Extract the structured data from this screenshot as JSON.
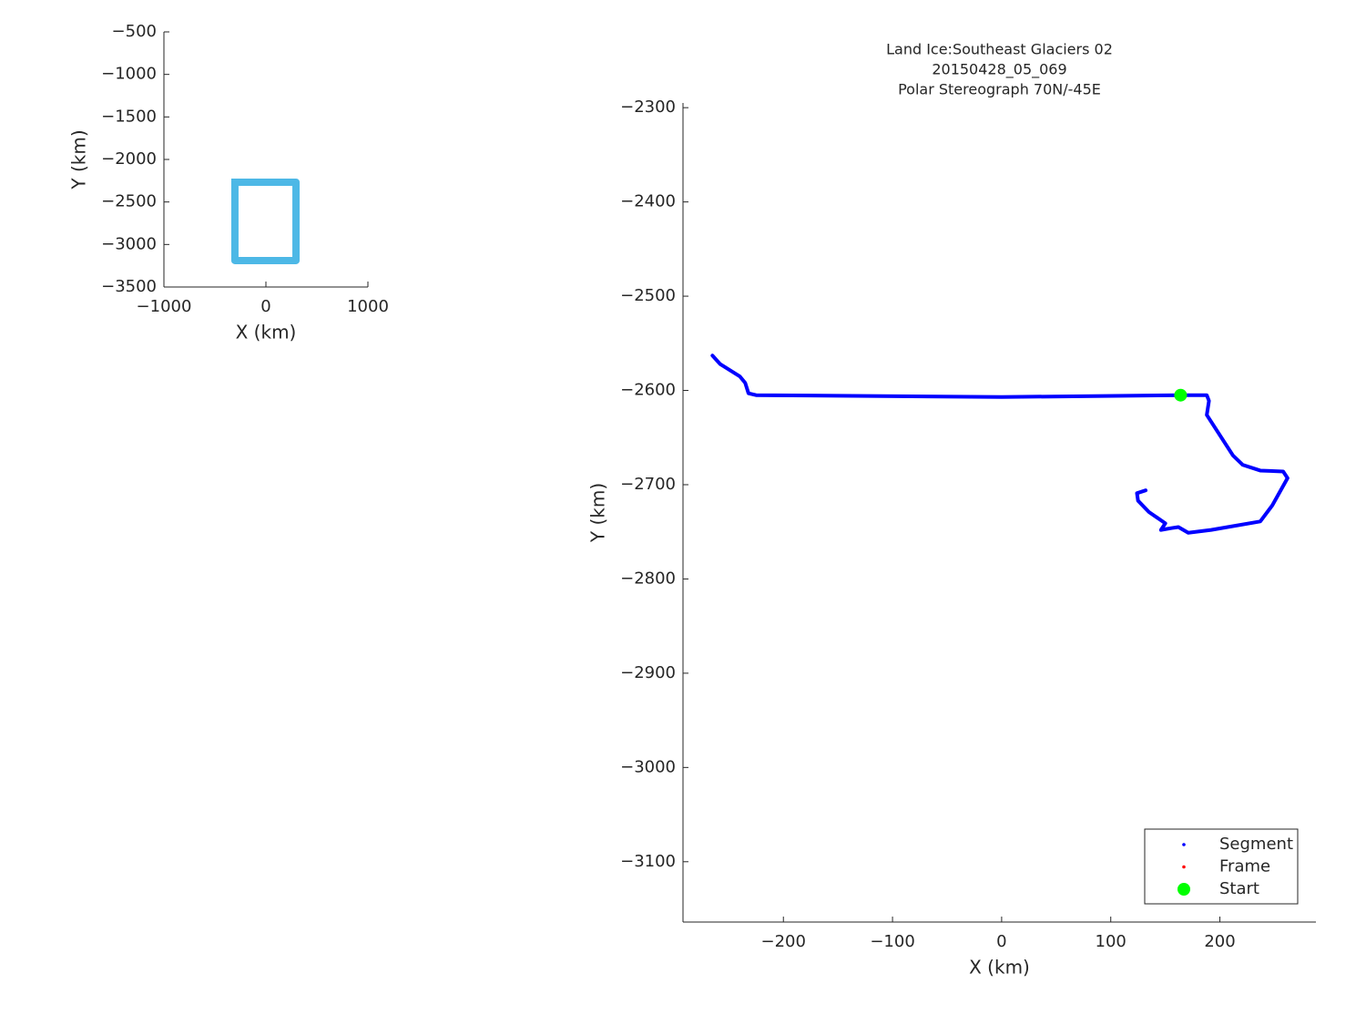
{
  "chart_data": [
    {
      "type": "line",
      "xlabel": "X (km)",
      "ylabel": "Y (km)",
      "xlim": [
        -1000,
        1000
      ],
      "ylim": [
        -3500,
        -500
      ],
      "xticks": [
        {
          "value": -1000,
          "label": "−1000"
        },
        0,
        1000
      ],
      "yticks": [
        {
          "value": -3500,
          "label": "−3500"
        },
        {
          "value": -3000,
          "label": "−3000"
        },
        {
          "value": -2500,
          "label": "−2500"
        },
        {
          "value": -2000,
          "label": "−2000"
        },
        {
          "value": -1500,
          "label": "−1500"
        },
        {
          "value": -1000,
          "label": "−1000"
        },
        {
          "value": -500,
          "label": "−500"
        }
      ],
      "series": [
        {
          "color": "#4db8e6",
          "style": "line",
          "x": [
            -304,
            295,
            295,
            -304,
            -304
          ],
          "y": [
            -2268,
            -2268,
            -3189,
            -3189,
            -2268
          ]
        }
      ]
    },
    {
      "type": "line",
      "title": [
        "Land Ice:Southeast  Glaciers 02",
        "20150428_05_069",
        "Polar Stereograph 70N/-45E"
      ],
      "xlabel": "X (km)",
      "ylabel": "Y (km)",
      "xlim": [
        -292,
        288
      ],
      "ylim": [
        -3164,
        -2295
      ],
      "xticks": [
        {
          "value": -200,
          "label": "−200"
        },
        {
          "value": -100,
          "label": "−100"
        },
        0,
        100,
        200
      ],
      "yticks": [
        {
          "value": -3100,
          "label": "−3100"
        },
        {
          "value": -3000,
          "label": "−3000"
        },
        {
          "value": -2900,
          "label": "−2900"
        },
        {
          "value": -2800,
          "label": "−2800"
        },
        {
          "value": -2700,
          "label": "−2700"
        },
        {
          "value": -2600,
          "label": "−2600"
        },
        {
          "value": -2500,
          "label": "−2500"
        },
        {
          "value": -2400,
          "label": "−2400"
        },
        {
          "value": -2300,
          "label": "−2300"
        }
      ],
      "legend": "lower right",
      "series": [
        {
          "name": "Segment",
          "color": "#0000ff",
          "style": "line",
          "x": [
            -265,
            -258,
            -240,
            -235,
            -232,
            -225,
            0,
            164,
            188,
            190,
            188,
            212,
            221,
            237,
            258,
            262,
            248,
            237,
            192,
            171,
            162,
            156,
            146,
            150,
            135,
            125,
            124,
            132
          ],
          "y": [
            -2563,
            -2572,
            -2585,
            -2592,
            -2603,
            -2605,
            -2607,
            -2605,
            -2605,
            -2611,
            -2626,
            -2669,
            -2679,
            -2685,
            -2686,
            -2693,
            -2722,
            -2739,
            -2748,
            -2751,
            -2745,
            -2746,
            -2748,
            -2741,
            -2729,
            -2717,
            -2709,
            -2706
          ]
        },
        {
          "name": "Frame",
          "color": "#ff0000",
          "style": "line",
          "x": [],
          "y": []
        },
        {
          "name": "Start",
          "color": "#00ff00",
          "style": "marker",
          "x": [
            164
          ],
          "y": [
            -2605
          ]
        }
      ]
    }
  ]
}
